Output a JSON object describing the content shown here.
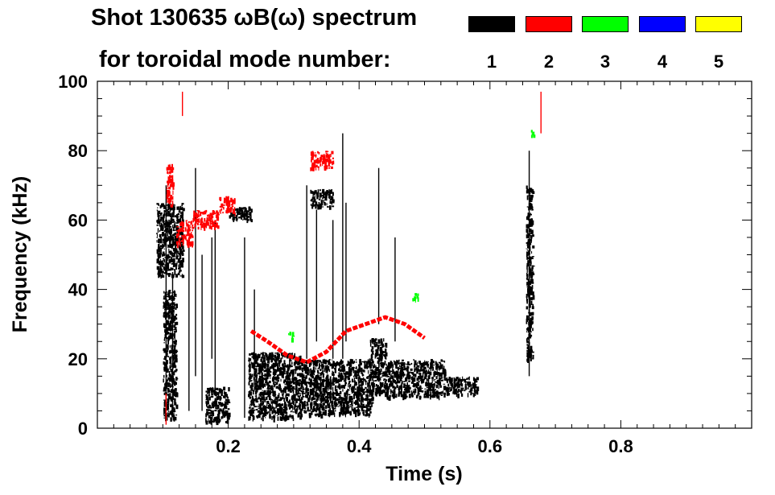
{
  "chart_data": {
    "type": "heatmap",
    "title_line1": "Shot 130635 ωB(ω) spectrum",
    "title_line2": "for toroidal mode number:",
    "xlabel": "Time (s)",
    "ylabel": "Frequency (kHz)",
    "xlim": [
      0.0,
      1.0
    ],
    "ylim": [
      0,
      100
    ],
    "x_ticks": [
      0.2,
      0.4,
      0.6,
      0.8
    ],
    "x_tick_labels": [
      "0.2",
      "0.4",
      "0.6",
      "0.8"
    ],
    "y_ticks": [
      0,
      20,
      40,
      60,
      80,
      100
    ],
    "y_tick_labels": [
      "0",
      "20",
      "40",
      "60",
      "80",
      "100"
    ],
    "legend": [
      {
        "label": "1",
        "color": "#000000"
      },
      {
        "label": "2",
        "color": "#ff0000"
      },
      {
        "label": "3",
        "color": "#00ff00"
      },
      {
        "label": "4",
        "color": "#0000ff"
      },
      {
        "label": "5",
        "color": "#ffff00"
      }
    ],
    "series": [
      {
        "name": "n=1",
        "color": "#000000",
        "blobs": [
          {
            "t": [
              0.09,
              0.13
            ],
            "f": [
              44,
              65
            ]
          },
          {
            "t": [
              0.1,
              0.12
            ],
            "f": [
              3,
              40
            ]
          },
          {
            "t": [
              0.165,
              0.2
            ],
            "f": [
              2,
              12
            ]
          },
          {
            "t": [
              0.2,
              0.235
            ],
            "f": [
              60,
              64
            ]
          },
          {
            "t": [
              0.23,
              0.31
            ],
            "f": [
              3,
              22
            ]
          },
          {
            "t": [
              0.31,
              0.42
            ],
            "f": [
              4,
              20
            ]
          },
          {
            "t": [
              0.415,
              0.44
            ],
            "f": [
              10,
              26
            ]
          },
          {
            "t": [
              0.44,
              0.53
            ],
            "f": [
              9,
              20
            ]
          },
          {
            "t": [
              0.53,
              0.58
            ],
            "f": [
              10,
              15
            ]
          },
          {
            "t": [
              0.325,
              0.36
            ],
            "f": [
              64,
              69
            ]
          },
          {
            "t": [
              0.655,
              0.665
            ],
            "f": [
              20,
              70
            ]
          }
        ],
        "streaks": [
          {
            "t": 0.105,
            "f": [
              2,
              70
            ]
          },
          {
            "t": 0.115,
            "f": [
              5,
              45
            ]
          },
          {
            "t": 0.14,
            "f": [
              5,
              55
            ]
          },
          {
            "t": 0.15,
            "f": [
              15,
              75
            ]
          },
          {
            "t": 0.16,
            "f": [
              5,
              50
            ]
          },
          {
            "t": 0.175,
            "f": [
              20,
              55
            ]
          },
          {
            "t": 0.18,
            "f": [
              10,
              60
            ]
          },
          {
            "t": 0.225,
            "f": [
              3,
              55
            ]
          },
          {
            "t": 0.24,
            "f": [
              12,
              40
            ]
          },
          {
            "t": 0.32,
            "f": [
              20,
              70
            ]
          },
          {
            "t": 0.335,
            "f": [
              25,
              63
            ]
          },
          {
            "t": 0.36,
            "f": [
              20,
              60
            ]
          },
          {
            "t": 0.375,
            "f": [
              20,
              85
            ]
          },
          {
            "t": 0.38,
            "f": [
              25,
              65
            ]
          },
          {
            "t": 0.43,
            "f": [
              30,
              75
            ]
          },
          {
            "t": 0.455,
            "f": [
              25,
              55
            ]
          },
          {
            "t": 0.66,
            "f": [
              15,
              80
            ]
          }
        ]
      },
      {
        "name": "n=2",
        "color": "#ff0000",
        "blobs": [
          {
            "t": [
              0.105,
              0.115
            ],
            "f": [
              64,
              77
            ]
          },
          {
            "t": [
              0.12,
              0.145
            ],
            "f": [
              53,
              60
            ]
          },
          {
            "t": [
              0.145,
              0.185
            ],
            "f": [
              58,
              63
            ]
          },
          {
            "t": [
              0.185,
              0.21
            ],
            "f": [
              62,
              67
            ]
          },
          {
            "t": [
              0.325,
              0.36
            ],
            "f": [
              75,
              80
            ]
          }
        ],
        "path": {
          "t": [
            0.235,
            0.26,
            0.29,
            0.32,
            0.35,
            0.38,
            0.41,
            0.44,
            0.47,
            0.5
          ],
          "f": [
            28,
            25,
            21,
            19,
            22,
            28,
            30,
            32,
            30,
            26
          ]
        },
        "streaks": [
          {
            "t": 0.105,
            "f": [
              1,
              10
            ]
          },
          {
            "t": 0.13,
            "f": [
              90,
              97
            ]
          },
          {
            "t": 0.678,
            "f": [
              85,
              97
            ]
          }
        ]
      },
      {
        "name": "n=3",
        "color": "#00ff00",
        "blobs": [
          {
            "t": [
              0.48,
              0.49
            ],
            "f": [
              37,
              39
            ]
          },
          {
            "t": [
              0.29,
              0.3
            ],
            "f": [
              26,
              28
            ]
          },
          {
            "t": [
              0.662,
              0.666
            ],
            "f": [
              84,
              86
            ]
          }
        ]
      },
      {
        "name": "n=4",
        "color": "#0000ff",
        "blobs": []
      },
      {
        "name": "n=5",
        "color": "#ffff00",
        "blobs": []
      }
    ]
  }
}
